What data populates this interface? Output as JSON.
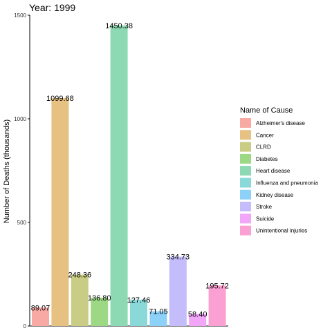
{
  "chart_data": {
    "type": "bar",
    "title": "Year: 1999",
    "xlabel": "",
    "ylabel": "Number of Deaths (thousands)",
    "ylim": [
      0,
      1500
    ],
    "yticks": [
      0,
      500,
      1000,
      1500
    ],
    "grid": false,
    "legend": {
      "title": "Name of Cause",
      "placement": "right"
    },
    "categories": [
      "Alzheimer's disease",
      "Cancer",
      "CLRD",
      "Diabetes",
      "Heart disease",
      "Influenza and pneumonia",
      "Kidney disease",
      "Stroke",
      "Suicide",
      "Unintentional injuries"
    ],
    "values": [
      89.07,
      1099.68,
      248.36,
      136.8,
      1450.38,
      127.46,
      71.05,
      334.73,
      58.4,
      195.72
    ],
    "value_labels": [
      "89.07",
      "1099.68",
      "248.36",
      "136.80",
      "1450.38",
      "127.46",
      "71.05",
      "334.73",
      "58.40",
      "195.72"
    ],
    "colors": [
      "#f8a9a4",
      "#e7c182",
      "#c9cc84",
      "#9dd984",
      "#8dd9b3",
      "#8ad8d8",
      "#8dd0f8",
      "#c4bcfb",
      "#f1a6f8",
      "#fba0d2"
    ]
  }
}
